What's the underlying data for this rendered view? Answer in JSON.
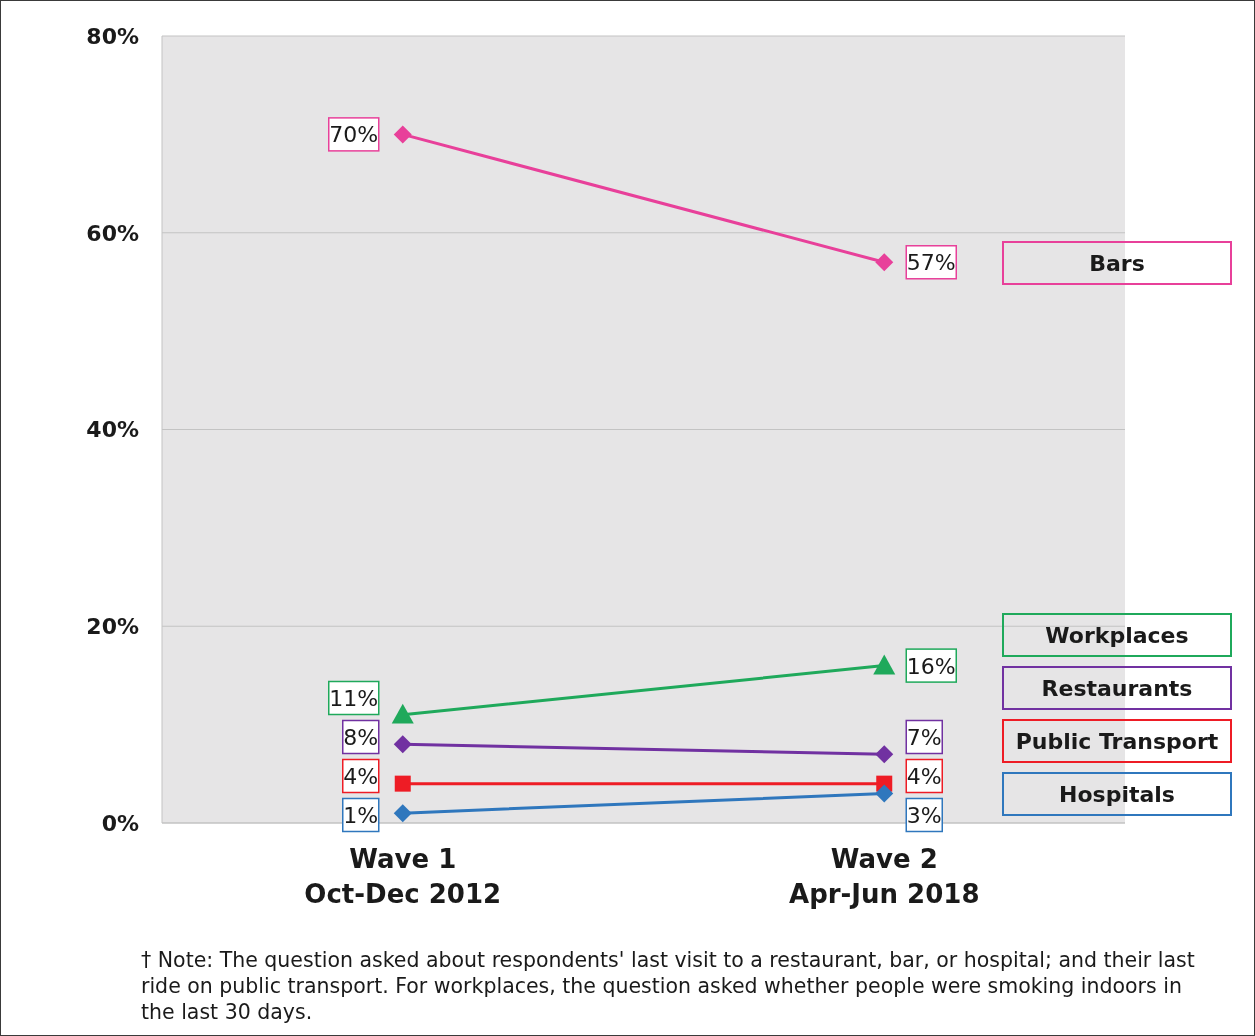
{
  "chart_data": {
    "type": "line",
    "categories": [
      "Wave 1\nOct-Dec 2012",
      "Wave 2\nApr-Jun 2018"
    ],
    "series": [
      {
        "name": "Bars",
        "color": "#e8409a",
        "marker": "diamond",
        "values": [
          70,
          57
        ],
        "value_labels": [
          "70%",
          "57%"
        ]
      },
      {
        "name": "Workplaces",
        "color": "#1fa95b",
        "marker": "triangle",
        "values": [
          11,
          16
        ],
        "value_labels": [
          "11%",
          "16%"
        ]
      },
      {
        "name": "Restaurants",
        "color": "#7131a1",
        "marker": "diamond",
        "values": [
          8,
          7
        ],
        "value_labels": [
          "8%",
          "7%"
        ]
      },
      {
        "name": "Public Transport",
        "color": "#ee1c25",
        "marker": "square",
        "values": [
          4,
          4
        ],
        "value_labels": [
          "4%",
          "4%"
        ]
      },
      {
        "name": "Hospitals",
        "color": "#2f77bd",
        "marker": "diamond",
        "values": [
          1,
          3
        ],
        "value_labels": [
          "1%",
          "3%"
        ]
      }
    ],
    "ylim": [
      0,
      80
    ],
    "yticks": [
      {
        "value": 0,
        "label": "0%"
      },
      {
        "value": 20,
        "label": "20%"
      },
      {
        "value": 40,
        "label": "40%"
      },
      {
        "value": 60,
        "label": "60%"
      },
      {
        "value": 80,
        "label": "80%"
      }
    ],
    "grid": "y",
    "legend": "right",
    "line_style": "solid",
    "annotations": [
      "† Note: The question asked about respondents' last visit to a restaurant, bar, or hospital; and their last ride on public transport. For workplaces, the question asked whether people were smoking indoors in the last 30 days."
    ]
  }
}
